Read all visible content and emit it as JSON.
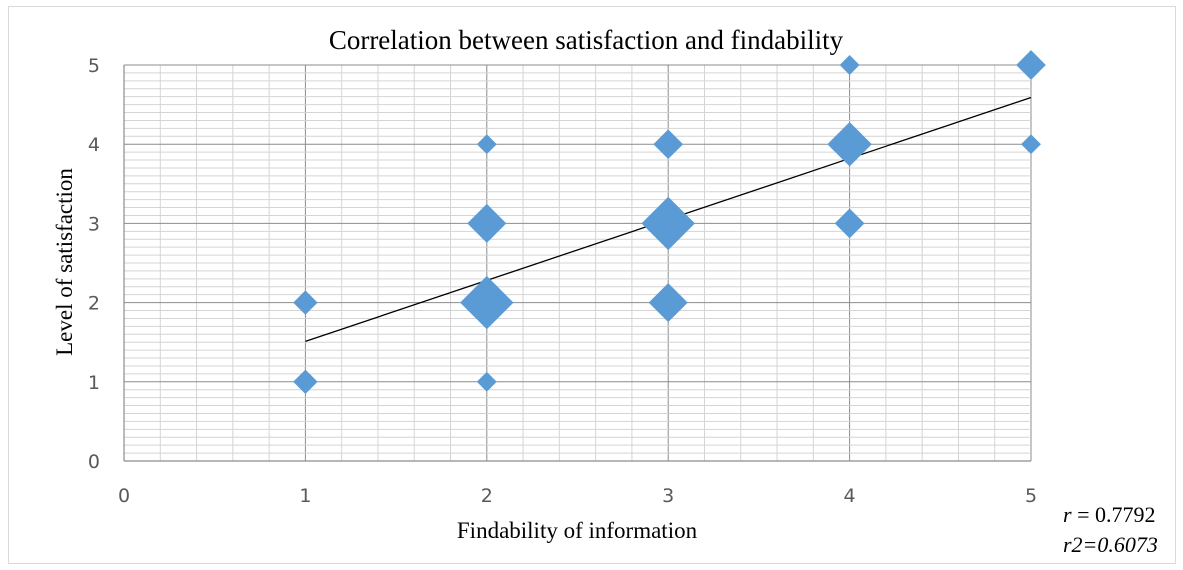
{
  "chart_data": {
    "type": "scatter",
    "title": "Correlation between satisfaction and findability",
    "xlabel": "Findability of information",
    "ylabel": "Level of satisfaction",
    "xlim": [
      0,
      5
    ],
    "ylim": [
      0,
      5
    ],
    "x_ticks": [
      "0",
      "1",
      "2",
      "3",
      "4",
      "5"
    ],
    "y_ticks": [
      "0",
      "1",
      "2",
      "3",
      "4",
      "5"
    ],
    "grid": true,
    "marker_color": "#5b9bd5",
    "trendline_color": "#000000",
    "points": [
      {
        "x": 1,
        "y": 1,
        "size": 1
      },
      {
        "x": 1,
        "y": 2,
        "size": 1
      },
      {
        "x": 2,
        "y": 1,
        "size": 0.6
      },
      {
        "x": 2,
        "y": 2,
        "size": 6
      },
      {
        "x": 2,
        "y": 3,
        "size": 3
      },
      {
        "x": 2,
        "y": 4,
        "size": 0.6
      },
      {
        "x": 3,
        "y": 2,
        "size": 3
      },
      {
        "x": 3,
        "y": 3,
        "size": 6
      },
      {
        "x": 3,
        "y": 4,
        "size": 1.6
      },
      {
        "x": 4,
        "y": 3,
        "size": 1.6
      },
      {
        "x": 4,
        "y": 4,
        "size": 4
      },
      {
        "x": 4,
        "y": 5,
        "size": 0.6
      },
      {
        "x": 5,
        "y": 4,
        "size": 0.6
      },
      {
        "x": 5,
        "y": 5,
        "size": 1.6
      }
    ],
    "trendline": {
      "x": [
        1,
        5
      ],
      "y": [
        1.51,
        4.59
      ]
    },
    "stats": {
      "r_label": "r",
      "r_value": "0.7792",
      "r2_text": "r2=0.6073"
    }
  }
}
